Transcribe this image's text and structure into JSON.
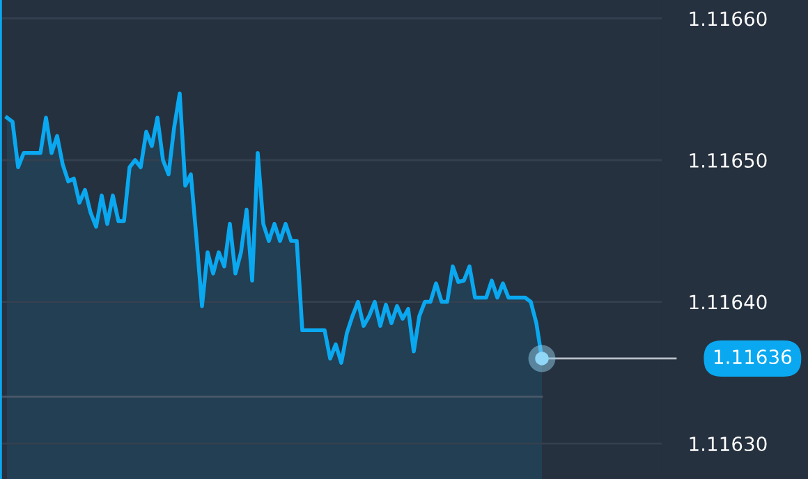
{
  "chart_data": {
    "type": "area",
    "categories": [
      null,
      null,
      null,
      null,
      null,
      null,
      null,
      null,
      null,
      null,
      null,
      null,
      null,
      null,
      null,
      null,
      null,
      null,
      null,
      null,
      null,
      null,
      null,
      null,
      null,
      null,
      null,
      null,
      null,
      null,
      null,
      null,
      null,
      null,
      null,
      null,
      null,
      null,
      null,
      null,
      null,
      null,
      null,
      null,
      null,
      null,
      null,
      null,
      null,
      null,
      null,
      null,
      null,
      null,
      null,
      null,
      null,
      null,
      null,
      null,
      null,
      null,
      null,
      null,
      null,
      null,
      null,
      null,
      null,
      null,
      null,
      null,
      null,
      null,
      null,
      null,
      null,
      null,
      null,
      null,
      null,
      null,
      null,
      null,
      null,
      null,
      null,
      null,
      null,
      null,
      null,
      null,
      null,
      null,
      null,
      null,
      null
    ],
    "series": [
      {
        "color": "#0aa8f0",
        "values": [
          1.11653,
          1.116527,
          1.116495,
          1.116505,
          1.116505,
          1.116505,
          1.116505,
          1.11653,
          1.116505,
          1.116517,
          1.116497,
          1.116485,
          1.116487,
          1.11647,
          1.116479,
          1.116463,
          1.116453,
          1.116475,
          1.116455,
          1.116475,
          1.116457,
          1.116457,
          1.116495,
          1.1165,
          1.116495,
          1.11652,
          1.11651,
          1.11653,
          1.1165,
          1.11649,
          1.116523,
          1.116547,
          1.116482,
          1.11649,
          1.116445,
          1.116397,
          1.116435,
          1.11642,
          1.116435,
          1.116425,
          1.116455,
          1.11642,
          1.116435,
          1.116465,
          1.116415,
          1.116505,
          1.116455,
          1.116443,
          1.116455,
          1.116443,
          1.116455,
          1.116443,
          1.116443,
          1.11638,
          1.11638,
          1.11638,
          1.11638,
          1.11638,
          1.11636,
          1.11637,
          1.116357,
          1.116378,
          1.11639,
          1.1164,
          1.116383,
          1.11639,
          1.1164,
          1.116383,
          1.116398,
          1.116385,
          1.116397,
          1.116388,
          1.116395,
          1.116365,
          1.11639,
          1.1164,
          1.1164,
          1.116413,
          1.1164,
          1.1164,
          1.116425,
          1.116414,
          1.116415,
          1.116425,
          1.116403,
          1.116403,
          1.116403,
          1.116415,
          1.116403,
          1.116413,
          1.116403,
          1.116403,
          1.116403,
          1.116403,
          1.1164,
          1.116385,
          1.11636
        ]
      }
    ],
    "ylim": [
      1.116275,
      1.116613
    ],
    "yticks": [
      {
        "value": 1.1163,
        "label": "1.11630"
      },
      {
        "value": 1.1164,
        "label": "1.11640"
      },
      {
        "value": 1.1165,
        "label": "1.11650"
      },
      {
        "value": 1.1166,
        "label": "1.11660"
      }
    ],
    "tick_labels": "y",
    "grid": "y",
    "ref_lines": [
      {
        "axis": "y",
        "value": 1.116333,
        "color": "#4a5869",
        "line_style": "solid"
      }
    ],
    "annotations": [
      "1.11636"
    ]
  }
}
